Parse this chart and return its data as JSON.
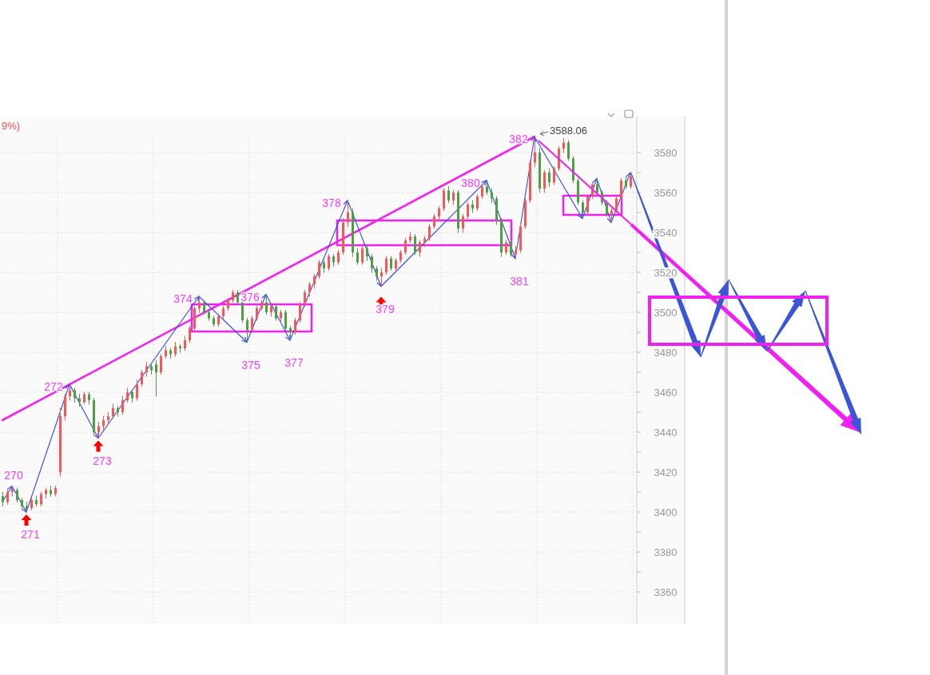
{
  "chart_data": {
    "type": "candlestick",
    "categories": [
      null,
      null,
      null,
      null,
      null,
      null,
      null,
      null,
      null,
      null,
      null,
      null,
      null,
      null,
      null,
      null,
      null,
      null,
      null,
      null,
      null,
      null,
      null,
      null,
      null,
      null,
      null,
      null,
      null,
      null,
      null,
      null,
      null,
      null,
      null,
      null,
      null,
      null,
      null,
      null,
      null,
      null,
      null,
      null,
      null,
      null,
      null,
      null,
      null,
      null,
      null,
      null,
      null,
      null,
      null,
      null,
      null,
      null,
      null,
      null,
      null,
      null,
      null,
      null,
      null,
      null,
      null,
      null,
      null,
      null,
      null,
      null,
      null,
      null,
      null,
      null,
      null,
      null,
      null,
      null,
      null,
      null,
      null,
      null,
      null,
      null,
      null,
      null,
      null,
      null,
      null,
      null,
      null,
      null,
      null,
      null,
      null,
      null,
      null,
      null,
      null,
      null,
      null,
      null,
      null,
      null,
      null,
      null,
      null,
      null,
      null,
      null,
      null,
      null,
      null,
      null,
      null,
      null,
      null,
      null,
      null,
      null,
      null,
      null,
      null,
      null,
      null,
      null,
      null,
      null,
      null,
      null
    ],
    "ohlc": [
      [
        3408,
        3410,
        3403,
        3405
      ],
      [
        3405,
        3411,
        3404,
        3410
      ],
      [
        3410,
        3413,
        3408,
        3411
      ],
      [
        3411,
        3412,
        3405,
        3406
      ],
      [
        3406,
        3407,
        3402,
        3403
      ],
      [
        3403,
        3405,
        3400,
        3402
      ],
      [
        3402,
        3407,
        3401,
        3406
      ],
      [
        3406,
        3408,
        3403,
        3404
      ],
      [
        3404,
        3410,
        3403,
        3409
      ],
      [
        3409,
        3412,
        3407,
        3411
      ],
      [
        3411,
        3413,
        3408,
        3409
      ],
      [
        3409,
        3413,
        3408,
        3412
      ],
      [
        3420,
        3452,
        3418,
        3448
      ],
      [
        3448,
        3459,
        3446,
        3458
      ],
      [
        3458,
        3464,
        3456,
        3461
      ],
      [
        3461,
        3462,
        3455,
        3457
      ],
      [
        3457,
        3459,
        3453,
        3455
      ],
      [
        3455,
        3460,
        3454,
        3459
      ],
      [
        3459,
        3460,
        3454,
        3456
      ],
      [
        3456,
        3457,
        3439,
        3440
      ],
      [
        3440,
        3445,
        3437,
        3443
      ],
      [
        3443,
        3448,
        3441,
        3446
      ],
      [
        3446,
        3450,
        3444,
        3448
      ],
      [
        3448,
        3454,
        3447,
        3452
      ],
      [
        3452,
        3453,
        3448,
        3450
      ],
      [
        3450,
        3458,
        3449,
        3456
      ],
      [
        3456,
        3462,
        3455,
        3460
      ],
      [
        3460,
        3461,
        3455,
        3457
      ],
      [
        3457,
        3466,
        3456,
        3464
      ],
      [
        3464,
        3471,
        3463,
        3470
      ],
      [
        3470,
        3475,
        3468,
        3473
      ],
      [
        3473,
        3474,
        3469,
        3471
      ],
      [
        3474,
        3476,
        3458,
        3470
      ],
      [
        3470,
        3479,
        3469,
        3478
      ],
      [
        3478,
        3483,
        3477,
        3481
      ],
      [
        3481,
        3482,
        3477,
        3479
      ],
      [
        3479,
        3485,
        3478,
        3483
      ],
      [
        3483,
        3484,
        3480,
        3482
      ],
      [
        3482,
        3488,
        3481,
        3486
      ],
      [
        3486,
        3493,
        3485,
        3492
      ],
      [
        3492,
        3503,
        3490,
        3502
      ],
      [
        3502,
        3508,
        3500,
        3505
      ],
      [
        3505,
        3506,
        3499,
        3500
      ],
      [
        3500,
        3501,
        3496,
        3497
      ],
      [
        3497,
        3498,
        3493,
        3494
      ],
      [
        3494,
        3499,
        3493,
        3498
      ],
      [
        3498,
        3503,
        3497,
        3502
      ],
      [
        3502,
        3507,
        3501,
        3506
      ],
      [
        3506,
        3511,
        3505,
        3510
      ],
      [
        3510,
        3511,
        3504,
        3505
      ],
      [
        3505,
        3506,
        3495,
        3496
      ],
      [
        3496,
        3497,
        3485,
        3491
      ],
      [
        3491,
        3498,
        3490,
        3497
      ],
      [
        3497,
        3503,
        3496,
        3502
      ],
      [
        3502,
        3506,
        3501,
        3505
      ],
      [
        3505,
        3509,
        3499,
        3500
      ],
      [
        3500,
        3504,
        3498,
        3503
      ],
      [
        3503,
        3504,
        3496,
        3497
      ],
      [
        3497,
        3501,
        3495,
        3500
      ],
      [
        3500,
        3501,
        3491,
        3492
      ],
      [
        3492,
        3493,
        3486,
        3490
      ],
      [
        3490,
        3497,
        3489,
        3496
      ],
      [
        3496,
        3505,
        3495,
        3504
      ],
      [
        3504,
        3511,
        3503,
        3510
      ],
      [
        3510,
        3515,
        3508,
        3514
      ],
      [
        3514,
        3519,
        3512,
        3518
      ],
      [
        3518,
        3526,
        3517,
        3525
      ],
      [
        3525,
        3526,
        3520,
        3522
      ],
      [
        3522,
        3529,
        3521,
        3528
      ],
      [
        3528,
        3529,
        3523,
        3525
      ],
      [
        3525,
        3531,
        3524,
        3530
      ],
      [
        3530,
        3547,
        3529,
        3545
      ],
      [
        3545,
        3556,
        3543,
        3550
      ],
      [
        3550,
        3552,
        3528,
        3530
      ],
      [
        3530,
        3532,
        3524,
        3525
      ],
      [
        3525,
        3534,
        3524,
        3532
      ],
      [
        3532,
        3533,
        3526,
        3528
      ],
      [
        3528,
        3529,
        3520,
        3522
      ],
      [
        3522,
        3523,
        3516,
        3518
      ],
      [
        3518,
        3522,
        3513,
        3520
      ],
      [
        3520,
        3528,
        3519,
        3527
      ],
      [
        3527,
        3528,
        3521,
        3522
      ],
      [
        3522,
        3527,
        3520,
        3526
      ],
      [
        3526,
        3531,
        3525,
        3530
      ],
      [
        3530,
        3537,
        3529,
        3536
      ],
      [
        3536,
        3540,
        3535,
        3538
      ],
      [
        3538,
        3539,
        3529,
        3530
      ],
      [
        3530,
        3536,
        3528,
        3535
      ],
      [
        3535,
        3538,
        3533,
        3537
      ],
      [
        3537,
        3544,
        3536,
        3543
      ],
      [
        3543,
        3549,
        3542,
        3548
      ],
      [
        3548,
        3553,
        3546,
        3552
      ],
      [
        3552,
        3562,
        3551,
        3561
      ],
      [
        3561,
        3563,
        3555,
        3556
      ],
      [
        3556,
        3561,
        3554,
        3560
      ],
      [
        3560,
        3561,
        3540,
        3542
      ],
      [
        3542,
        3549,
        3540,
        3548
      ],
      [
        3548,
        3555,
        3547,
        3554
      ],
      [
        3554,
        3556,
        3550,
        3552
      ],
      [
        3552,
        3559,
        3551,
        3558
      ],
      [
        3558,
        3564,
        3557,
        3563
      ],
      [
        3563,
        3566,
        3559,
        3560
      ],
      [
        3560,
        3562,
        3555,
        3557
      ],
      [
        3557,
        3558,
        3544,
        3546
      ],
      [
        3546,
        3547,
        3528,
        3530
      ],
      [
        3530,
        3536,
        3529,
        3535
      ],
      [
        3535,
        3536,
        3528,
        3529
      ],
      [
        3529,
        3533,
        3527,
        3531
      ],
      [
        3531,
        3544,
        3530,
        3543
      ],
      [
        3543,
        3557,
        3542,
        3556
      ],
      [
        3556,
        3576,
        3555,
        3575
      ],
      [
        3575,
        3588.06,
        3573,
        3580
      ],
      [
        3580,
        3582,
        3560,
        3562
      ],
      [
        3562,
        3571,
        3560,
        3570
      ],
      [
        3570,
        3572,
        3563,
        3565
      ],
      [
        3565,
        3573,
        3564,
        3572
      ],
      [
        3572,
        3583,
        3571,
        3582
      ],
      [
        3582,
        3587,
        3580,
        3585
      ],
      [
        3585,
        3586,
        3576,
        3577
      ],
      [
        3577,
        3578,
        3565,
        3566
      ],
      [
        3566,
        3567,
        3554,
        3555
      ],
      [
        3555,
        3556,
        3547,
        3550
      ],
      [
        3550,
        3559,
        3549,
        3558
      ],
      [
        3558,
        3565,
        3557,
        3564
      ],
      [
        3564,
        3567,
        3559,
        3560
      ],
      [
        3560,
        3561,
        3554,
        3555
      ],
      [
        3555,
        3556,
        3548,
        3549
      ],
      [
        3549,
        3552,
        3545,
        3551
      ],
      [
        3551,
        3558,
        3550,
        3557
      ],
      [
        3557,
        3567,
        3556,
        3566
      ],
      [
        3566,
        3568,
        3562,
        3563
      ],
      [
        3563,
        3570,
        3562,
        3568
      ]
    ],
    "series": [
      {
        "type": "line",
        "color": "#f522ee",
        "values": [
          3446,
          null,
          null,
          null,
          null,
          null,
          null,
          null,
          null,
          null,
          null,
          null,
          null,
          null,
          null,
          null,
          null,
          null,
          null,
          null,
          null,
          null,
          null,
          null,
          null,
          null,
          null,
          null,
          null,
          null,
          null,
          null,
          null,
          null,
          null,
          null,
          null,
          null,
          null,
          null,
          null,
          null,
          null,
          null,
          null,
          null,
          null,
          null,
          null,
          null,
          null,
          null,
          null,
          null,
          null,
          null,
          null,
          null,
          null,
          null,
          null,
          null,
          null,
          null,
          null,
          null,
          null,
          null,
          null,
          null,
          null,
          null,
          null,
          null,
          null,
          null,
          null,
          null,
          null,
          null,
          null,
          null,
          null,
          null,
          null,
          null,
          null,
          null,
          null,
          null,
          null,
          null,
          null,
          null,
          null,
          null,
          null,
          null,
          null,
          null,
          null,
          null,
          null,
          null,
          null,
          null,
          null,
          null,
          null,
          null,
          null,
          3588,
          null,
          null,
          null,
          null,
          null,
          null,
          null,
          null,
          null,
          null,
          null,
          null,
          null,
          null,
          null,
          null,
          null,
          null,
          null,
          null
        ]
      },
      {
        "type": "line",
        "color": "#3347ee",
        "values": [
          3405,
          null,
          3413,
          null,
          null,
          3400,
          null,
          null,
          null,
          null,
          null,
          null,
          null,
          null,
          3464,
          null,
          null,
          null,
          null,
          null,
          3437,
          null,
          null,
          null,
          null,
          null,
          null,
          null,
          null,
          null,
          null,
          null,
          null,
          null,
          null,
          null,
          null,
          null,
          null,
          null,
          null,
          3508,
          null,
          null,
          null,
          null,
          null,
          null,
          null,
          null,
          null,
          3485,
          null,
          null,
          null,
          3509,
          null,
          null,
          null,
          null,
          3486,
          null,
          null,
          null,
          null,
          null,
          null,
          null,
          null,
          null,
          null,
          null,
          3556,
          null,
          null,
          null,
          null,
          null,
          null,
          3513,
          null,
          null,
          null,
          null,
          null,
          null,
          null,
          null,
          null,
          null,
          null,
          null,
          null,
          null,
          null,
          null,
          null,
          null,
          null,
          null,
          null,
          3566,
          null,
          null,
          null,
          null,
          null,
          3527,
          null,
          null,
          null,
          3588,
          null,
          null,
          null,
          null,
          null,
          null,
          null,
          null,
          null,
          3547,
          null,
          null,
          3567,
          null,
          null,
          3545,
          null,
          null,
          null,
          3570
        ]
      },
      {
        "type": "scatter",
        "color": "#ff0000",
        "marker": "triangle",
        "values": [
          null,
          null,
          null,
          null,
          null,
          3396,
          null,
          null,
          null,
          null,
          null,
          null,
          null,
          null,
          null,
          null,
          null,
          null,
          null,
          null,
          3433,
          null,
          null,
          null,
          null,
          null,
          null,
          null,
          null,
          null,
          null,
          null,
          null,
          null,
          null,
          null,
          null,
          null,
          null,
          null,
          null,
          null,
          null,
          null,
          null,
          null,
          null,
          null,
          null,
          null,
          null,
          null,
          null,
          null,
          null,
          null,
          null,
          null,
          null,
          null,
          null,
          null,
          null,
          null,
          null,
          null,
          null,
          null,
          null,
          null,
          null,
          null,
          null,
          null,
          null,
          null,
          null,
          null,
          null,
          3505,
          null,
          null,
          null,
          null,
          null,
          null,
          null,
          null,
          null,
          null,
          null,
          null,
          null,
          null,
          null,
          null,
          null,
          null,
          null,
          null,
          null,
          null,
          null,
          null,
          null,
          null,
          null,
          null,
          null,
          null,
          null,
          null,
          null,
          null,
          null,
          null,
          null,
          null,
          null,
          null,
          null,
          null,
          null,
          null,
          null,
          null,
          null,
          null,
          null,
          null,
          null,
          null
        ]
      }
    ],
    "ylim": [
      3344,
      3598
    ],
    "yticks": [
      3360,
      {
        "value": 3370,
        "label": null
      },
      3380,
      {
        "value": 3390,
        "label": null
      },
      3400,
      {
        "value": 3410,
        "label": null
      },
      3420,
      {
        "value": 3430,
        "label": null
      },
      3440,
      {
        "value": 3450,
        "label": null
      },
      3460,
      {
        "value": 3470,
        "label": null
      },
      3480,
      {
        "value": 3490,
        "label": null
      },
      3500,
      {
        "value": 3510,
        "label": null
      },
      3520,
      {
        "value": 3530,
        "label": null
      },
      3540,
      {
        "value": 3550,
        "label": null
      },
      3560,
      {
        "value": 3570,
        "label": null
      },
      3580
    ],
    "grid": true,
    "tick_labels": "y",
    "annotations": [
      "9%)",
      "3588.06",
      "270",
      "271",
      "272",
      "273",
      "374",
      "375",
      "376",
      "377",
      "378",
      "379",
      "380",
      "381",
      "382"
    ]
  }
}
